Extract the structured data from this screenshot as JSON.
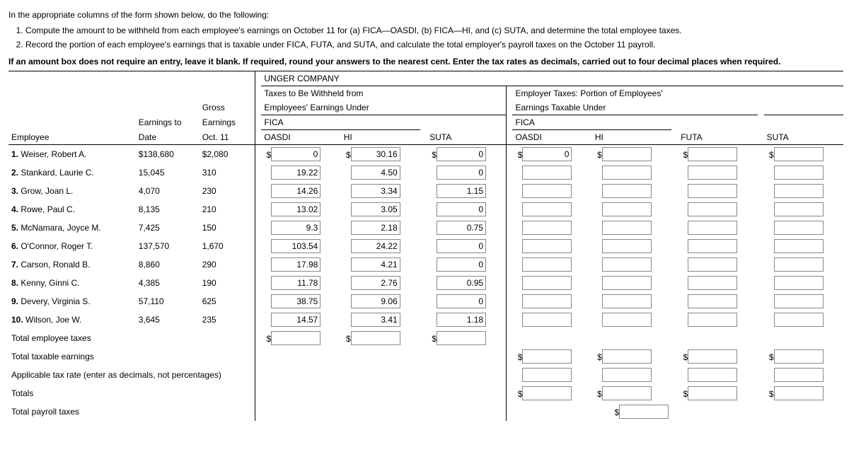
{
  "instructions": {
    "intro": "In the appropriate columns of the form shown below, do the following:",
    "item1_pre": "Compute the amount to be withheld from each employee's earnings on October 11 for (a) FICA",
    "item1_mid1": "OASDI, (b) FICA",
    "item1_mid2": "HI, and (c) SUTA, and determine the total employee taxes.",
    "item2": "Record the portion of each employee's earnings that is taxable under FICA, FUTA, and SUTA, and calculate the total employer's payroll taxes on the October 11 payroll.",
    "note": "If an amount box does not require an entry, leave it blank. If required, round your answers to the nearest cent. Enter the tax rates as decimals, carried out to four decimal places when required."
  },
  "company": "UNGER COMPANY",
  "headers": {
    "withheld": "Taxes to Be Withheld from",
    "withheld2": "Employees' Earnings Under",
    "employer": "Employer Taxes: Portion of Employees'",
    "employer2": "Earnings Taxable Under",
    "gross": "Gross",
    "earnings_to": "Earnings to",
    "earnings": "Earnings",
    "fica": "FICA",
    "employee": "Employee",
    "date": "Date",
    "oct11": "Oct. 11",
    "oasdi": "OASDI",
    "hi": "HI",
    "suta": "SUTA",
    "futa": "FUTA"
  },
  "rows": [
    {
      "n": "1.",
      "name": "Weiser, Robert A.",
      "etd": "$138,680",
      "gross": "$2,080",
      "oasdi": "0",
      "hi": "30.16",
      "suta": "0",
      "d_oasdi": "0"
    },
    {
      "n": "2.",
      "name": "Stankard, Laurie C.",
      "etd": "15,045",
      "gross": "310",
      "oasdi": "19.22",
      "hi": "4.50",
      "suta": "0"
    },
    {
      "n": "3.",
      "name": "Grow, Joan L.",
      "etd": "4,070",
      "gross": "230",
      "oasdi": "14.26",
      "hi": "3.34",
      "suta": "1.15"
    },
    {
      "n": "4.",
      "name": "Rowe, Paul C.",
      "etd": "8,135",
      "gross": "210",
      "oasdi": "13.02",
      "hi": "3.05",
      "suta": "0"
    },
    {
      "n": "5.",
      "name": "McNamara, Joyce M.",
      "etd": "7,425",
      "gross": "150",
      "oasdi": "9.3",
      "hi": "2.18",
      "suta": "0.75"
    },
    {
      "n": "6.",
      "name": "O'Connor, Roger T.",
      "etd": "137,570",
      "gross": "1,670",
      "oasdi": "103.54",
      "hi": "24.22",
      "suta": "0"
    },
    {
      "n": "7.",
      "name": "Carson, Ronald B.",
      "etd": "8,860",
      "gross": "290",
      "oasdi": "17.98",
      "hi": "4.21",
      "suta": "0"
    },
    {
      "n": "8.",
      "name": "Kenny, Ginni C.",
      "etd": "4,385",
      "gross": "190",
      "oasdi": "11.78",
      "hi": "2.76",
      "suta": "0.95"
    },
    {
      "n": "9.",
      "name": "Devery, Virginia S.",
      "etd": "57,110",
      "gross": "625",
      "oasdi": "38.75",
      "hi": "9.06",
      "suta": "0"
    },
    {
      "n": "10.",
      "name": "Wilson, Joe W.",
      "etd": "3,645",
      "gross": "235",
      "oasdi": "14.57",
      "hi": "3.41",
      "suta": "1.18"
    }
  ],
  "footer": {
    "tet": "Total employee taxes",
    "tte": "Total taxable earnings",
    "rate": "Applicable tax rate (enter as decimals, not percentages)",
    "totals": "Totals",
    "tpt": "Total payroll taxes"
  }
}
